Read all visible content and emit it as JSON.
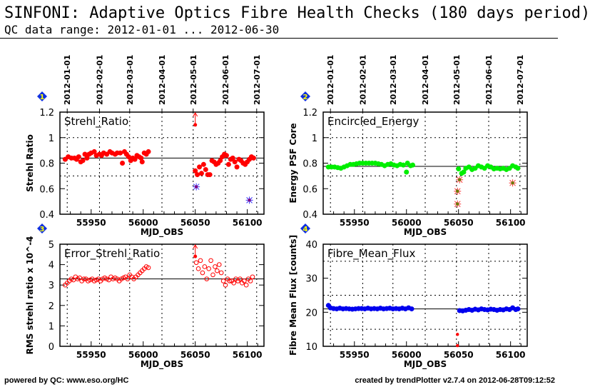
{
  "header": {
    "title": "SINFONI: Adaptive Optics Fibre Health Checks (180 days period)",
    "subtitle": "QC data range: 2012-01-01 ... 2012-06-30"
  },
  "footer": {
    "left": "powered by QC: www.eso.org/HC",
    "right": "created by trendPlotter v2.7.4 on 2012-06-28T09:12:52"
  },
  "chart_data": [
    {
      "type": "scatter",
      "panel": "1",
      "title": "Strehl_Ratio",
      "xlabel": "MJD_OBS",
      "ylabel": "Strehl Ratio",
      "xlim": [
        55920,
        56116
      ],
      "ylim": [
        0.4,
        1.2
      ],
      "yticks": [
        0.4,
        0.6,
        0.8,
        1,
        1.2
      ],
      "ytick_labels": [
        "0.4",
        "0.6",
        "0.8",
        "1",
        "1.2"
      ],
      "xticks": [
        55950,
        56000,
        56050,
        56100
      ],
      "date_ticks": [
        {
          "mjd": 55927,
          "label": "2012-01-01"
        },
        {
          "mjd": 55958,
          "label": "2012-02-01"
        },
        {
          "mjd": 55987,
          "label": "2012-03-01"
        },
        {
          "mjd": 56018,
          "label": "2012-04-01"
        },
        {
          "mjd": 56048,
          "label": "2012-05-01"
        },
        {
          "mjd": 56079,
          "label": "2012-06-01"
        },
        {
          "mjd": 56109,
          "label": "2012-07-01"
        }
      ],
      "ref_line": 0.84,
      "dashed_lines": [
        0.7,
        1.0
      ],
      "marker": "filled",
      "color": "#ff0000",
      "points": [
        [
          55925,
          0.83
        ],
        [
          55928,
          0.85
        ],
        [
          55931,
          0.84
        ],
        [
          55934,
          0.84
        ],
        [
          55936,
          0.83
        ],
        [
          55938,
          0.85
        ],
        [
          55940,
          0.81
        ],
        [
          55942,
          0.82
        ],
        [
          55944,
          0.87
        ],
        [
          55946,
          0.84
        ],
        [
          55948,
          0.87
        ],
        [
          55950,
          0.88
        ],
        [
          55953,
          0.89
        ],
        [
          55955,
          0.86
        ],
        [
          55958,
          0.87
        ],
        [
          55960,
          0.86
        ],
        [
          55962,
          0.88
        ],
        [
          55965,
          0.87
        ],
        [
          55968,
          0.89
        ],
        [
          55970,
          0.88
        ],
        [
          55973,
          0.87
        ],
        [
          55975,
          0.88
        ],
        [
          55978,
          0.88
        ],
        [
          55980,
          0.8
        ],
        [
          55982,
          0.89
        ],
        [
          55984,
          0.87
        ],
        [
          55986,
          0.85
        ],
        [
          55988,
          0.82
        ],
        [
          55990,
          0.84
        ],
        [
          55992,
          0.83
        ],
        [
          55994,
          0.86
        ],
        [
          55996,
          0.85
        ],
        [
          55998,
          0.84
        ],
        [
          55999,
          0.81
        ],
        [
          56001,
          0.88
        ],
        [
          56003,
          0.87
        ],
        [
          56005,
          0.89
        ],
        [
          56050,
          0.74
        ],
        [
          56052,
          0.71
        ],
        [
          56054,
          0.77
        ],
        [
          56056,
          0.72
        ],
        [
          56058,
          0.79
        ],
        [
          56060,
          0.75
        ],
        [
          56062,
          0.71
        ],
        [
          56064,
          0.71
        ],
        [
          56066,
          0.82
        ],
        [
          56068,
          0.81
        ],
        [
          56070,
          0.79
        ],
        [
          56072,
          0.8
        ],
        [
          56074,
          0.82
        ],
        [
          56076,
          0.85
        ],
        [
          56078,
          0.87
        ],
        [
          56080,
          0.86
        ],
        [
          56082,
          0.79
        ],
        [
          56084,
          0.83
        ],
        [
          56086,
          0.84
        ],
        [
          56088,
          0.81
        ],
        [
          56090,
          0.77
        ],
        [
          56092,
          0.83
        ],
        [
          56094,
          0.82
        ],
        [
          56096,
          0.8
        ],
        [
          56098,
          0.79
        ],
        [
          56100,
          0.81
        ],
        [
          56102,
          0.83
        ],
        [
          56104,
          0.85
        ],
        [
          56106,
          0.84
        ]
      ],
      "outliers_high": [
        [
          56050,
          1.1
        ]
      ],
      "flagged": [
        [
          56051,
          0.615
        ],
        [
          56102,
          0.51
        ]
      ],
      "flag_color": "#3333ff"
    },
    {
      "type": "scatter",
      "panel": "2",
      "title": "Encircled_Energy",
      "xlabel": "MJD_OBS",
      "ylabel": "Energy PSF Core",
      "xlim": [
        55920,
        56116
      ],
      "ylim": [
        0.4,
        1.2
      ],
      "yticks": [
        0.4,
        0.6,
        0.8,
        1,
        1.2
      ],
      "ytick_labels": [
        "0.4",
        "0.6",
        "0.8",
        "1",
        "1.2"
      ],
      "xticks": [
        55950,
        56000,
        56050,
        56100
      ],
      "ref_line": 0.775,
      "dashed_lines": [
        0.7,
        1.0
      ],
      "marker": "filled",
      "color": "#00ee00",
      "points": [
        [
          55925,
          0.77
        ],
        [
          55928,
          0.77
        ],
        [
          55931,
          0.77
        ],
        [
          55934,
          0.765
        ],
        [
          55937,
          0.76
        ],
        [
          55940,
          0.77
        ],
        [
          55943,
          0.78
        ],
        [
          55946,
          0.79
        ],
        [
          55949,
          0.79
        ],
        [
          55952,
          0.795
        ],
        [
          55955,
          0.8
        ],
        [
          55958,
          0.8
        ],
        [
          55961,
          0.8
        ],
        [
          55964,
          0.8
        ],
        [
          55967,
          0.8
        ],
        [
          55970,
          0.8
        ],
        [
          55973,
          0.795
        ],
        [
          55976,
          0.79
        ],
        [
          55979,
          0.78
        ],
        [
          55982,
          0.79
        ],
        [
          55985,
          0.795
        ],
        [
          55988,
          0.785
        ],
        [
          55991,
          0.78
        ],
        [
          55994,
          0.79
        ],
        [
          55997,
          0.785
        ],
        [
          56000,
          0.73
        ],
        [
          56001,
          0.8
        ],
        [
          56004,
          0.78
        ],
        [
          56006,
          0.785
        ],
        [
          56050,
          0.755
        ],
        [
          56053,
          0.72
        ],
        [
          56055,
          0.73
        ],
        [
          56057,
          0.76
        ],
        [
          56060,
          0.77
        ],
        [
          56063,
          0.75
        ],
        [
          56066,
          0.76
        ],
        [
          56069,
          0.78
        ],
        [
          56072,
          0.77
        ],
        [
          56075,
          0.76
        ],
        [
          56078,
          0.78
        ],
        [
          56081,
          0.77
        ],
        [
          56084,
          0.755
        ],
        [
          56087,
          0.76
        ],
        [
          56090,
          0.755
        ],
        [
          56093,
          0.76
        ],
        [
          56096,
          0.75
        ],
        [
          56099,
          0.76
        ],
        [
          56102,
          0.78
        ],
        [
          56105,
          0.77
        ],
        [
          56107,
          0.76
        ]
      ],
      "flagged": [
        [
          56049,
          0.58
        ],
        [
          56049,
          0.48
        ],
        [
          56051,
          0.67
        ],
        [
          56102,
          0.645
        ]
      ],
      "flag_color": "#ff3333"
    },
    {
      "type": "scatter",
      "panel": "3",
      "title": "Error_Strehl_Ratio",
      "xlabel": "MJD_OBS",
      "ylabel": "RMS strehl ratio x 10^-4",
      "xlim": [
        55920,
        56116
      ],
      "ylim": [
        0,
        5
      ],
      "yticks": [
        0,
        1,
        2,
        3,
        4,
        5
      ],
      "ytick_labels": [
        "0",
        "1",
        "2",
        "3",
        "4",
        "5"
      ],
      "xticks": [
        55950,
        56000,
        56050,
        56100
      ],
      "ref_line": 3.3,
      "dashed_lines": [],
      "marker": "open",
      "color": "#ff0000",
      "points": [
        [
          55925,
          3.0
        ],
        [
          55927,
          3.1
        ],
        [
          55929,
          3.2
        ],
        [
          55931,
          3.3
        ],
        [
          55933,
          3.25
        ],
        [
          55935,
          3.4
        ],
        [
          55937,
          3.3
        ],
        [
          55939,
          3.35
        ],
        [
          55941,
          3.2
        ],
        [
          55943,
          3.3
        ],
        [
          55945,
          3.3
        ],
        [
          55947,
          3.2
        ],
        [
          55949,
          3.25
        ],
        [
          55951,
          3.3
        ],
        [
          55953,
          3.2
        ],
        [
          55955,
          3.25
        ],
        [
          55957,
          3.3
        ],
        [
          55959,
          3.2
        ],
        [
          55961,
          3.3
        ],
        [
          55963,
          3.35
        ],
        [
          55965,
          3.3
        ],
        [
          55967,
          3.25
        ],
        [
          55969,
          3.4
        ],
        [
          55971,
          3.3
        ],
        [
          55973,
          3.35
        ],
        [
          55975,
          3.3
        ],
        [
          55977,
          3.2
        ],
        [
          55979,
          3.3
        ],
        [
          55981,
          3.35
        ],
        [
          55983,
          3.4
        ],
        [
          55985,
          3.3
        ],
        [
          55987,
          3.5
        ],
        [
          55989,
          3.4
        ],
        [
          55991,
          3.3
        ],
        [
          55993,
          3.4
        ],
        [
          55995,
          3.5
        ],
        [
          55997,
          3.6
        ],
        [
          55999,
          3.7
        ],
        [
          56001,
          3.8
        ],
        [
          56003,
          3.9
        ],
        [
          56005,
          3.85
        ],
        [
          56051,
          4.1
        ],
        [
          56053,
          3.8
        ],
        [
          56055,
          4.2
        ],
        [
          56057,
          3.6
        ],
        [
          56059,
          3.9
        ],
        [
          56061,
          3.3
        ],
        [
          56063,
          3.8
        ],
        [
          56065,
          4.2
        ],
        [
          56067,
          3.5
        ],
        [
          56069,
          3.9
        ],
        [
          56071,
          3.7
        ],
        [
          56073,
          4.0
        ],
        [
          56075,
          3.6
        ],
        [
          56077,
          3.2
        ],
        [
          56079,
          3.0
        ],
        [
          56081,
          3.3
        ],
        [
          56083,
          3.2
        ],
        [
          56085,
          3.2
        ],
        [
          56087,
          3.1
        ],
        [
          56089,
          3.3
        ],
        [
          56091,
          3.2
        ],
        [
          56093,
          3.3
        ],
        [
          56095,
          3.1
        ],
        [
          56097,
          3.2
        ],
        [
          56099,
          3.0
        ],
        [
          56101,
          3.3
        ],
        [
          56103,
          3.2
        ],
        [
          56105,
          3.4
        ]
      ],
      "outliers_high": [
        [
          56050,
          4.4
        ]
      ]
    },
    {
      "type": "scatter",
      "panel": "4",
      "title": "Fibre_Mean_Flux",
      "xlabel": "MJD_OBS",
      "ylabel": "Fibre Mean Flux [counts]",
      "xlim": [
        55920,
        56116
      ],
      "ylim": [
        10,
        40
      ],
      "yticks": [
        10,
        20,
        30,
        40
      ],
      "ytick_labels": [
        "10",
        "20",
        "30",
        "40"
      ],
      "xticks": [
        55950,
        56000,
        56050,
        56100
      ],
      "ref_line": 21,
      "dashed_lines": [
        15,
        25,
        35
      ],
      "marker": "filled",
      "color": "#0000ee",
      "points": [
        [
          55925,
          22
        ],
        [
          55927,
          21.3
        ],
        [
          55930,
          21.1
        ],
        [
          55933,
          21
        ],
        [
          55936,
          21.2
        ],
        [
          55939,
          21
        ],
        [
          55942,
          21.1
        ],
        [
          55945,
          21
        ],
        [
          55948,
          20.9
        ],
        [
          55951,
          21
        ],
        [
          55954,
          21.1
        ],
        [
          55957,
          21.1
        ],
        [
          55960,
          21
        ],
        [
          55963,
          21.2
        ],
        [
          55966,
          21
        ],
        [
          55969,
          21.1
        ],
        [
          55972,
          21
        ],
        [
          55975,
          21.2
        ],
        [
          55978,
          21
        ],
        [
          55981,
          21.1
        ],
        [
          55984,
          21.2
        ],
        [
          55987,
          21
        ],
        [
          55990,
          21.1
        ],
        [
          55993,
          21
        ],
        [
          55996,
          21.2
        ],
        [
          55999,
          21
        ],
        [
          56002,
          21.3
        ],
        [
          56005,
          21
        ],
        [
          56051,
          20.5
        ],
        [
          56054,
          20.4
        ],
        [
          56057,
          20.6
        ],
        [
          56060,
          20.8
        ],
        [
          56063,
          20.6
        ],
        [
          56066,
          20.9
        ],
        [
          56069,
          20.7
        ],
        [
          56072,
          21
        ],
        [
          56075,
          20.8
        ],
        [
          56078,
          20.7
        ],
        [
          56081,
          20.9
        ],
        [
          56084,
          20.8
        ],
        [
          56087,
          20.6
        ],
        [
          56090,
          20.8
        ],
        [
          56093,
          20.7
        ],
        [
          56096,
          21
        ],
        [
          56099,
          20.8
        ],
        [
          56102,
          21.3
        ],
        [
          56105,
          20.8
        ],
        [
          56107,
          21
        ]
      ],
      "outliers_low": [
        [
          56049,
          13.5
        ],
        [
          56049,
          10.2
        ]
      ]
    }
  ]
}
